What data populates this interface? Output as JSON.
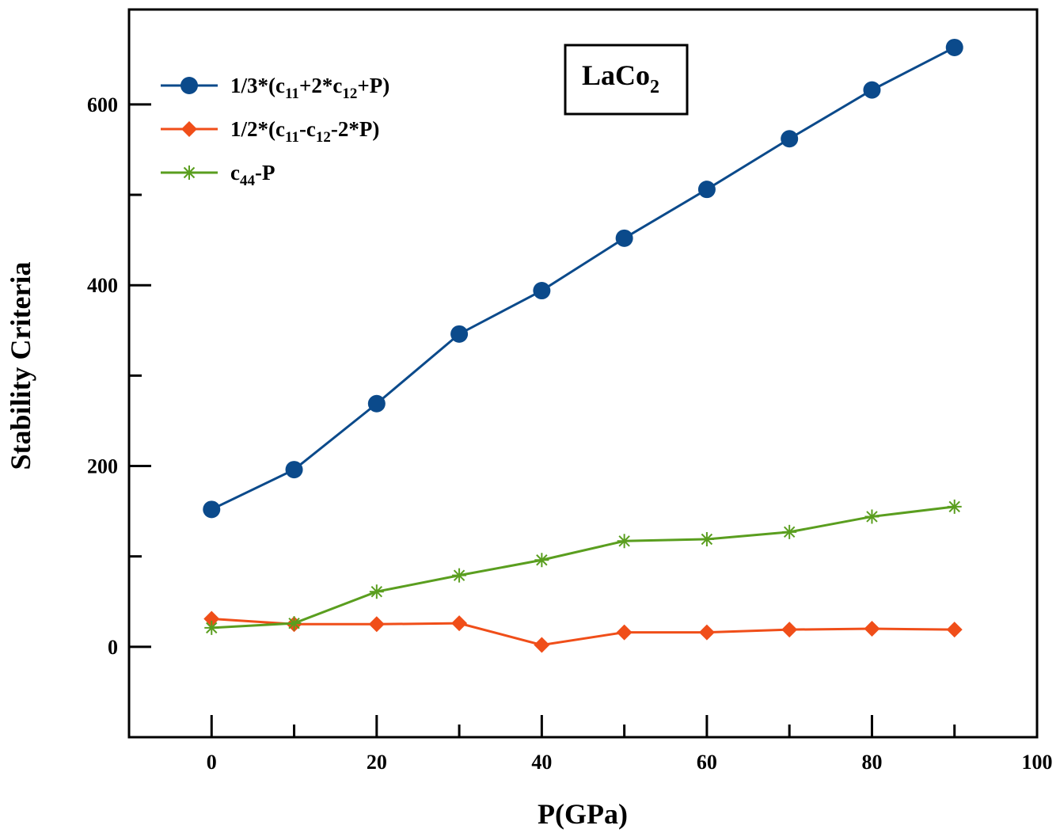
{
  "chart_data": {
    "type": "line",
    "xlabel": "P(GPa)",
    "ylabel": "Stability Criteria",
    "xlim": [
      -10,
      100
    ],
    "ylim": [
      -100,
      705
    ],
    "x_ticks": [
      0,
      20,
      40,
      60,
      80,
      100
    ],
    "x_tick_labels": [
      "0",
      "20",
      "40",
      "60",
      "80",
      "100"
    ],
    "x_minor_ticks": [
      10,
      30,
      50,
      70,
      90
    ],
    "y_ticks": [
      0,
      200,
      400,
      600
    ],
    "y_tick_labels": [
      "0",
      "200",
      "400",
      "600"
    ],
    "y_minor_ticks": [
      100,
      300,
      500
    ],
    "grid": false,
    "legend_position": "top-left",
    "annotation": {
      "main": "LaCo",
      "sub": "2"
    },
    "x": [
      0,
      10,
      20,
      30,
      40,
      50,
      60,
      70,
      80,
      90
    ],
    "series": [
      {
        "name": "1/3*(c11+2*c12+P)",
        "legend_parts": [
          {
            "text": "1/3*(c",
            "sub": false
          },
          {
            "text": "11",
            "sub": true
          },
          {
            "text": "+2*c",
            "sub": false
          },
          {
            "text": "12",
            "sub": true
          },
          {
            "text": "+P)",
            "sub": false
          }
        ],
        "color": "#0b4a8b",
        "marker": "circle",
        "values": [
          152,
          196,
          269,
          346,
          394,
          452,
          506,
          562,
          616,
          663
        ]
      },
      {
        "name": "1/2*(c11-c12-2*P)",
        "legend_parts": [
          {
            "text": "1/2*(c",
            "sub": false
          },
          {
            "text": "11",
            "sub": true
          },
          {
            "text": "-c",
            "sub": false
          },
          {
            "text": "12",
            "sub": true
          },
          {
            "text": "-2*P)",
            "sub": false
          }
        ],
        "color": "#f04e19",
        "marker": "diamond",
        "values": [
          31,
          25,
          25,
          26,
          2,
          16,
          16,
          19,
          20,
          19
        ]
      },
      {
        "name": "c44-P",
        "legend_parts": [
          {
            "text": "c",
            "sub": false
          },
          {
            "text": "44",
            "sub": true
          },
          {
            "text": "-P",
            "sub": false
          }
        ],
        "color": "#5a9e1f",
        "marker": "star",
        "values": [
          21,
          26,
          61,
          79,
          96,
          117,
          119,
          127,
          144,
          155
        ]
      }
    ]
  }
}
